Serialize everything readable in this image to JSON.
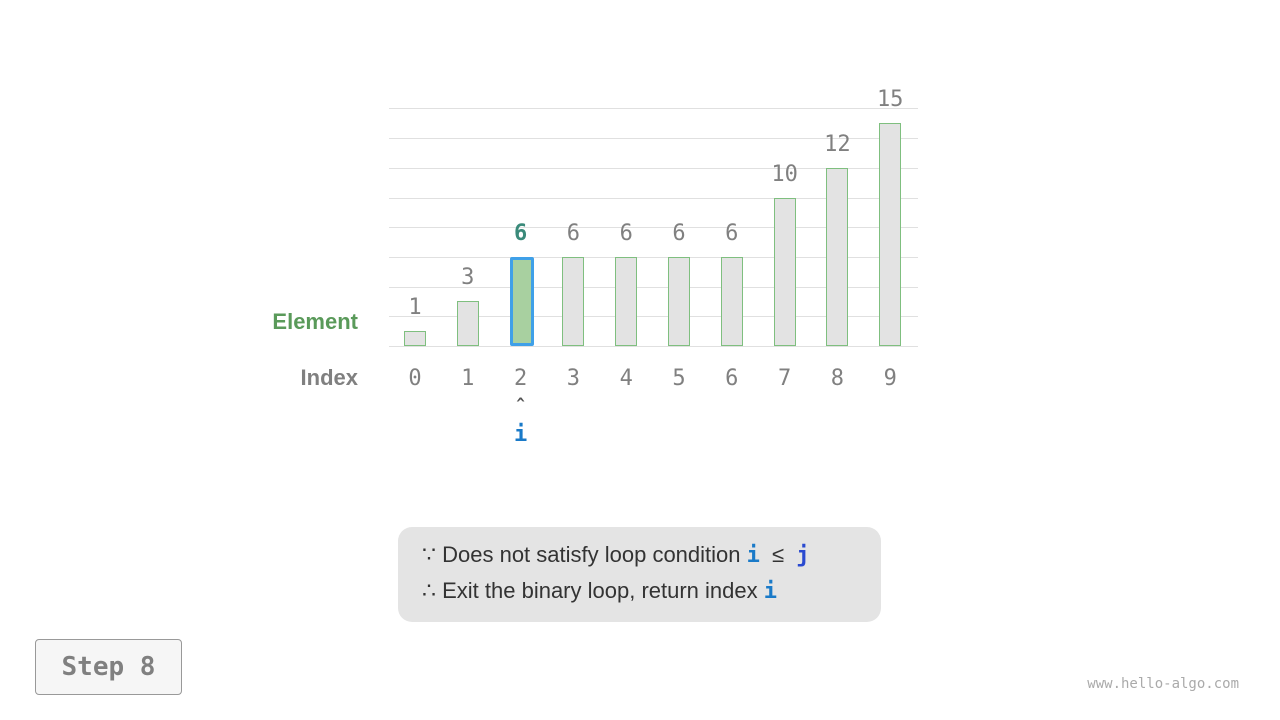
{
  "diagram": {
    "row_labels": {
      "element": "Element",
      "index": "Index"
    },
    "elements": [
      1,
      3,
      6,
      6,
      6,
      6,
      6,
      10,
      12,
      15
    ],
    "indices": [
      "0",
      "1",
      "2",
      "3",
      "4",
      "5",
      "6",
      "7",
      "8",
      "9"
    ],
    "highlight_index": 2,
    "pointer": {
      "label": "i",
      "index": 2,
      "arrow": "^"
    },
    "colors": {
      "element_label": "#5a9a5a",
      "pointer": "#1a7ac8",
      "highlight_border": "#3fa0e8",
      "highlight_fill": "#a8d0a0",
      "bar_fill": "#e3e3e3",
      "j": "#2a4ad0"
    }
  },
  "note": {
    "line1_prefix": "∵ Does not satisfy loop condition",
    "line1_i": "i",
    "line1_op": "≤",
    "line1_j": "j",
    "line2_prefix": "∴ Exit the binary loop, return index",
    "line2_i": "i"
  },
  "step_label": "Step 8",
  "watermark": "www.hello-algo.com"
}
